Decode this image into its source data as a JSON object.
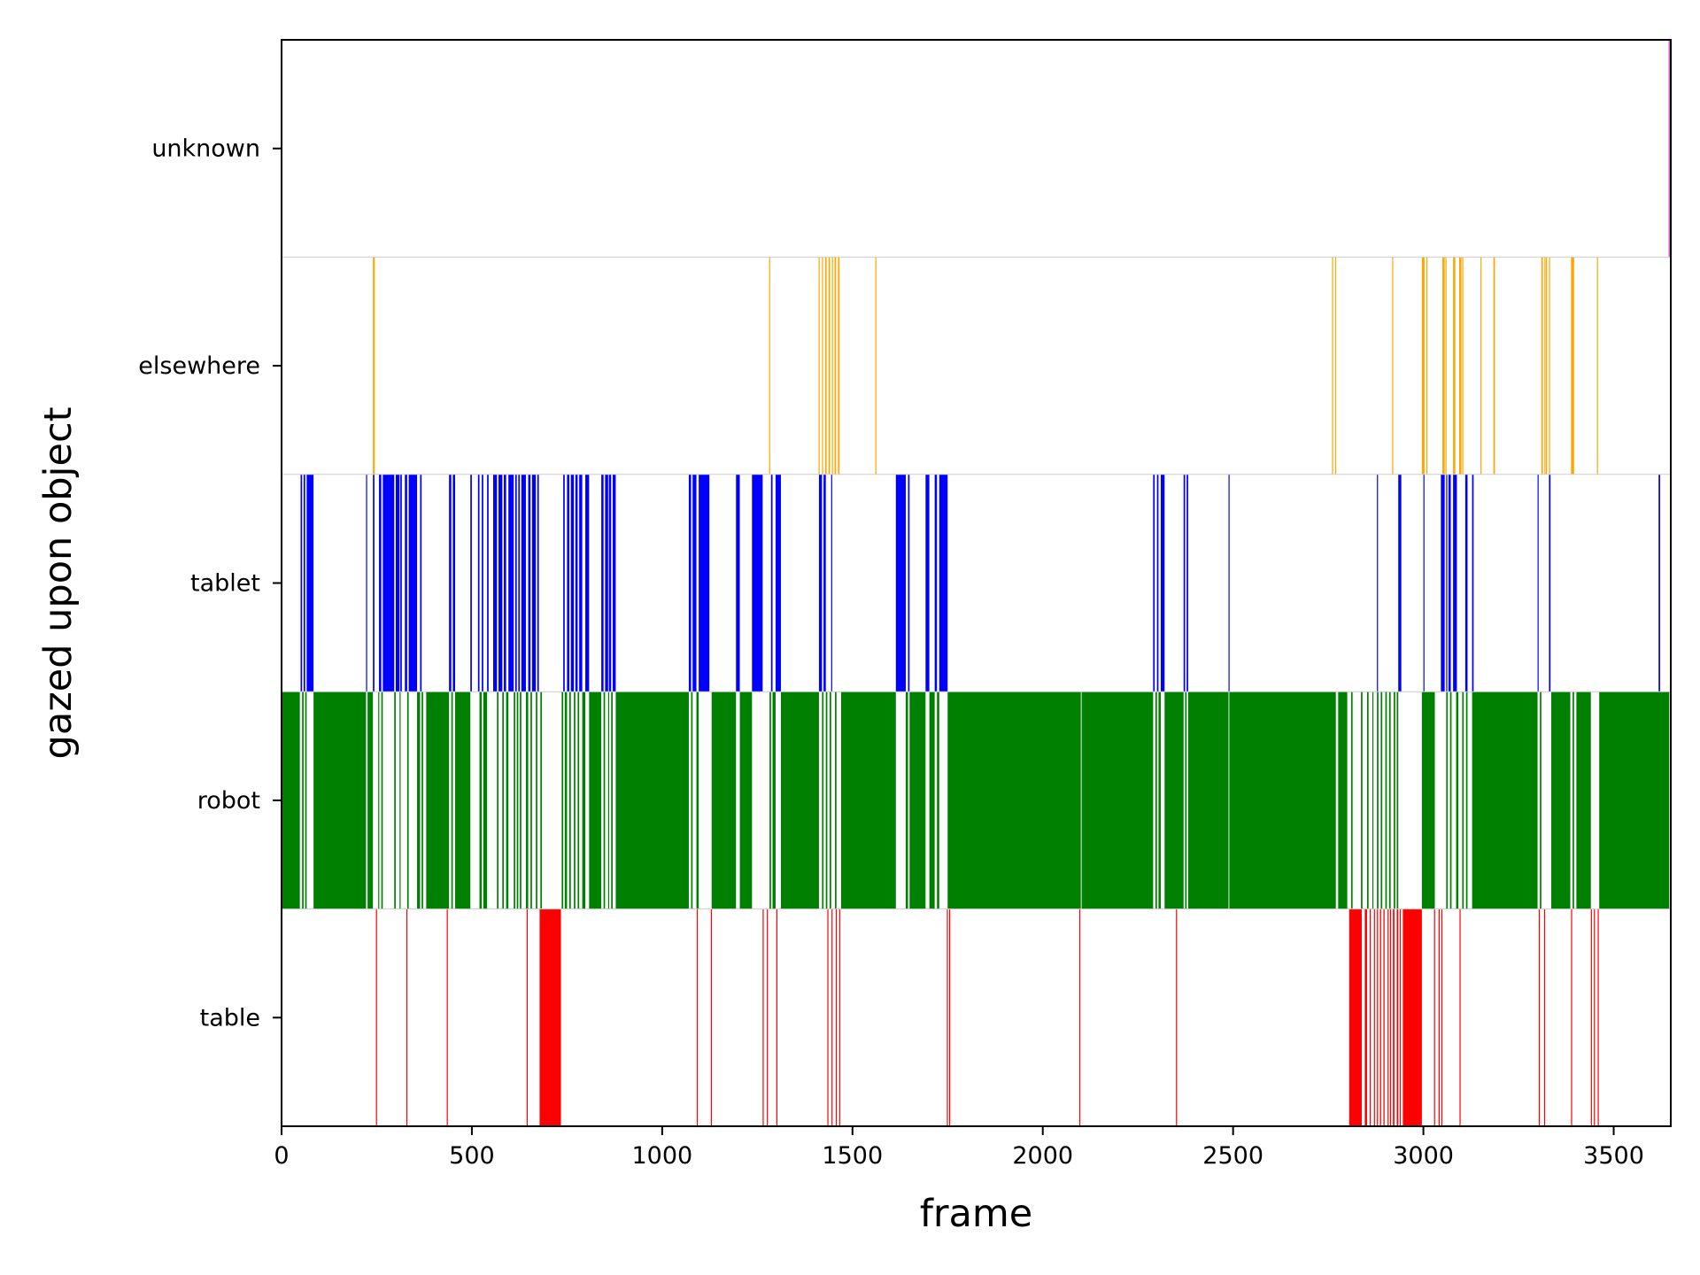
{
  "chart_data": {
    "type": "bar",
    "orientation": "horizontal-event-raster",
    "xlabel": "frame",
    "ylabel": "gazed upon object",
    "xlim": [
      0,
      3650
    ],
    "xticks": [
      0,
      500,
      1000,
      1500,
      2000,
      2500,
      3000,
      3500
    ],
    "grid": false,
    "legend": "none",
    "categories": [
      "table",
      "robot",
      "tablet",
      "elsewhere",
      "unknown"
    ],
    "colors": {
      "table": "#ff0000",
      "robot": "#008000",
      "tablet": "#0000ff",
      "elsewhere": "#ffa500",
      "unknown": "#da70d6"
    },
    "series": [
      {
        "category": "table",
        "intervals": [
          [
            248,
            250
          ],
          [
            328,
            330
          ],
          [
            434,
            436
          ],
          [
            644,
            646
          ],
          [
            678,
            734
          ],
          [
            1091,
            1093
          ],
          [
            1128,
            1130
          ],
          [
            1264,
            1266
          ],
          [
            1275,
            1277
          ],
          [
            1300,
            1302
          ],
          [
            1434,
            1436
          ],
          [
            1445,
            1447
          ],
          [
            1456,
            1458
          ],
          [
            1465,
            1467
          ],
          [
            1748,
            1750
          ],
          [
            1754,
            1756
          ],
          [
            2096,
            2098
          ],
          [
            2350,
            2352
          ],
          [
            2805,
            2838
          ],
          [
            2846,
            2852
          ],
          [
            2859,
            2862
          ],
          [
            2870,
            2872
          ],
          [
            2878,
            2880
          ],
          [
            2886,
            2889
          ],
          [
            2895,
            2898
          ],
          [
            2906,
            2908
          ],
          [
            2912,
            2915
          ],
          [
            2920,
            2924
          ],
          [
            2930,
            2934
          ],
          [
            2938,
            2940
          ],
          [
            2946,
            2996
          ],
          [
            3028,
            3030
          ],
          [
            3040,
            3043
          ],
          [
            3047,
            3049
          ],
          [
            3095,
            3097
          ],
          [
            3303,
            3306
          ],
          [
            3317,
            3319
          ],
          [
            3388,
            3390
          ],
          [
            3440,
            3442
          ],
          [
            3448,
            3450
          ],
          [
            3458,
            3460
          ]
        ]
      },
      {
        "category": "robot",
        "intervals": [
          [
            0,
            48
          ],
          [
            54,
            58
          ],
          [
            62,
            66
          ],
          [
            84,
            222
          ],
          [
            226,
            240
          ],
          [
            254,
            256
          ],
          [
            262,
            266
          ],
          [
            296,
            300
          ],
          [
            310,
            312
          ],
          [
            330,
            334
          ],
          [
            356,
            364
          ],
          [
            368,
            372
          ],
          [
            380,
            440
          ],
          [
            446,
            450
          ],
          [
            456,
            496
          ],
          [
            520,
            526
          ],
          [
            530,
            540
          ],
          [
            566,
            570
          ],
          [
            580,
            584
          ],
          [
            590,
            596
          ],
          [
            610,
            614
          ],
          [
            618,
            622
          ],
          [
            626,
            630
          ],
          [
            642,
            648
          ],
          [
            654,
            658
          ],
          [
            668,
            672
          ],
          [
            680,
            684
          ],
          [
            736,
            740
          ],
          [
            744,
            750
          ],
          [
            756,
            760
          ],
          [
            768,
            772
          ],
          [
            778,
            782
          ],
          [
            790,
            798
          ],
          [
            808,
            840
          ],
          [
            846,
            850
          ],
          [
            858,
            860
          ],
          [
            866,
            870
          ],
          [
            878,
            1070
          ],
          [
            1076,
            1080
          ],
          [
            1090,
            1096
          ],
          [
            1130,
            1194
          ],
          [
            1204,
            1236
          ],
          [
            1282,
            1286
          ],
          [
            1290,
            1298
          ],
          [
            1312,
            1412
          ],
          [
            1420,
            1424
          ],
          [
            1430,
            1434
          ],
          [
            1440,
            1444
          ],
          [
            1454,
            1458
          ],
          [
            1470,
            1614
          ],
          [
            1640,
            1646
          ],
          [
            1650,
            1692
          ],
          [
            1702,
            1716
          ],
          [
            1722,
            1728
          ],
          [
            1750,
            2100
          ],
          [
            2102,
            2290
          ],
          [
            2296,
            2300
          ],
          [
            2304,
            2310
          ],
          [
            2320,
            2370
          ],
          [
            2374,
            2378
          ],
          [
            2382,
            2488
          ],
          [
            2490,
            2770
          ],
          [
            2776,
            2800
          ],
          [
            2810,
            2814
          ],
          [
            2836,
            2840
          ],
          [
            2852,
            2856
          ],
          [
            2866,
            2868
          ],
          [
            2878,
            2882
          ],
          [
            2888,
            2892
          ],
          [
            2900,
            2904
          ],
          [
            2910,
            2914
          ],
          [
            2922,
            2926
          ],
          [
            2930,
            2934
          ],
          [
            2996,
            3030
          ],
          [
            3060,
            3064
          ],
          [
            3070,
            3074
          ],
          [
            3086,
            3092
          ],
          [
            3102,
            3106
          ],
          [
            3112,
            3116
          ],
          [
            3128,
            3300
          ],
          [
            3306,
            3310
          ],
          [
            3336,
            3386
          ],
          [
            3392,
            3396
          ],
          [
            3402,
            3440
          ],
          [
            3462,
            3646
          ]
        ]
      },
      {
        "category": "tablet",
        "intervals": [
          [
            50,
            54
          ],
          [
            58,
            62
          ],
          [
            66,
            84
          ],
          [
            222,
            224
          ],
          [
            240,
            244
          ],
          [
            256,
            262
          ],
          [
            266,
            296
          ],
          [
            300,
            310
          ],
          [
            312,
            316
          ],
          [
            324,
            330
          ],
          [
            334,
            356
          ],
          [
            364,
            368
          ],
          [
            440,
            446
          ],
          [
            450,
            456
          ],
          [
            496,
            500
          ],
          [
            516,
            520
          ],
          [
            526,
            530
          ],
          [
            540,
            544
          ],
          [
            556,
            566
          ],
          [
            570,
            580
          ],
          [
            584,
            590
          ],
          [
            596,
            610
          ],
          [
            614,
            618
          ],
          [
            622,
            626
          ],
          [
            630,
            642
          ],
          [
            648,
            654
          ],
          [
            658,
            668
          ],
          [
            672,
            676
          ],
          [
            740,
            744
          ],
          [
            750,
            756
          ],
          [
            760,
            768
          ],
          [
            772,
            778
          ],
          [
            782,
            790
          ],
          [
            798,
            808
          ],
          [
            840,
            846
          ],
          [
            850,
            858
          ],
          [
            860,
            866
          ],
          [
            870,
            878
          ],
          [
            1070,
            1076
          ],
          [
            1080,
            1090
          ],
          [
            1096,
            1124
          ],
          [
            1194,
            1204
          ],
          [
            1236,
            1264
          ],
          [
            1286,
            1290
          ],
          [
            1298,
            1312
          ],
          [
            1412,
            1420
          ],
          [
            1424,
            1430
          ],
          [
            1444,
            1446
          ],
          [
            1614,
            1640
          ],
          [
            1646,
            1650
          ],
          [
            1692,
            1702
          ],
          [
            1716,
            1722
          ],
          [
            1728,
            1750
          ],
          [
            2290,
            2294
          ],
          [
            2300,
            2304
          ],
          [
            2310,
            2320
          ],
          [
            2370,
            2374
          ],
          [
            2378,
            2382
          ],
          [
            2488,
            2490
          ],
          [
            2878,
            2880
          ],
          [
            2934,
            2942
          ],
          [
            3000,
            3002
          ],
          [
            3046,
            3056
          ],
          [
            3060,
            3062
          ],
          [
            3066,
            3072
          ],
          [
            3078,
            3088
          ],
          [
            3110,
            3116
          ],
          [
            3128,
            3132
          ],
          [
            3300,
            3302
          ],
          [
            3330,
            3334
          ],
          [
            3618,
            3622
          ]
        ]
      },
      {
        "category": "elsewhere",
        "intervals": [
          [
            240,
            245
          ],
          [
            1281,
            1283
          ],
          [
            1411,
            1413
          ],
          [
            1420,
            1422
          ],
          [
            1428,
            1432
          ],
          [
            1437,
            1441
          ],
          [
            1446,
            1448
          ],
          [
            1453,
            1457
          ],
          [
            1462,
            1466
          ],
          [
            1560,
            1562
          ],
          [
            2760,
            2762
          ],
          [
            2768,
            2770
          ],
          [
            2918,
            2920
          ],
          [
            2996,
            3003
          ],
          [
            3008,
            3010
          ],
          [
            3050,
            3056
          ],
          [
            3058,
            3060
          ],
          [
            3078,
            3084
          ],
          [
            3094,
            3100
          ],
          [
            3102,
            3104
          ],
          [
            3150,
            3152
          ],
          [
            3184,
            3188
          ],
          [
            3310,
            3314
          ],
          [
            3318,
            3320
          ],
          [
            3322,
            3324
          ],
          [
            3330,
            3332
          ],
          [
            3388,
            3396
          ],
          [
            3456,
            3458
          ]
        ]
      },
      {
        "category": "unknown",
        "intervals": [
          [
            3644,
            3650
          ]
        ]
      }
    ]
  }
}
